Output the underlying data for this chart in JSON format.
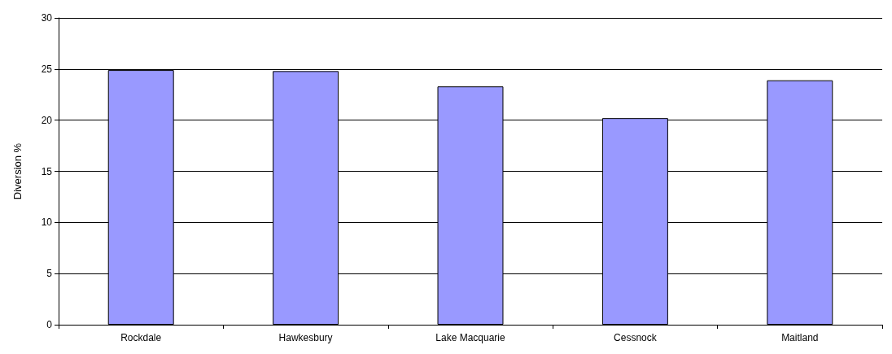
{
  "chart_data": {
    "type": "bar",
    "ylabel": "Diversion %",
    "categories": [
      "Rockdale",
      "Hawkesbury",
      "Lake Macquarie",
      "Cessnock",
      "Maitland"
    ],
    "values": [
      24.9,
      24.8,
      23.3,
      20.2,
      23.9
    ],
    "color": "#9999ff",
    "ylim": [
      0,
      30
    ],
    "yticks": [
      0,
      5,
      10,
      15,
      20,
      25,
      30
    ],
    "grid": "y"
  }
}
